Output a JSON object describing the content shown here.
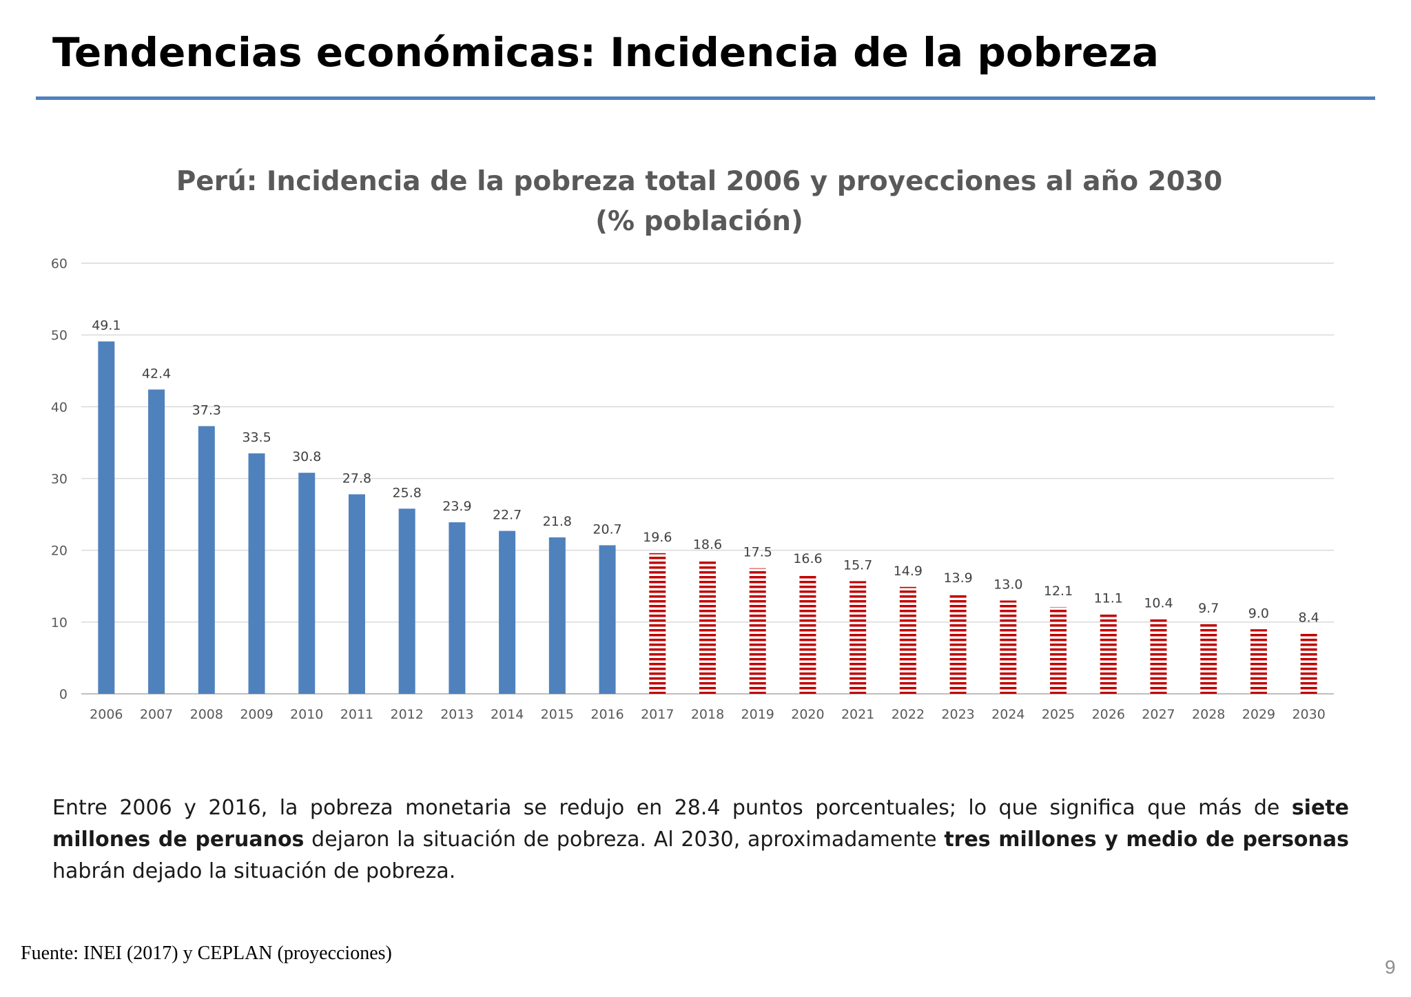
{
  "slide": {
    "title": "Tendencias económicas: Incidencia de la pobreza",
    "source": "Fuente: INEI (2017) y CEPLAN (proyecciones)",
    "page_number": "9"
  },
  "summary": {
    "p1": "Entre 2006 y 2016, la pobreza monetaria se redujo en 28.4 puntos porcentuales; lo que significa que más de ",
    "b1": "siete millones de peruanos",
    "p2": " dejaron la situación de pobreza. Al 2030, aproximadamente ",
    "b2": "tres millones y medio de personas",
    "p3": " habrán dejado la situación de pobreza."
  },
  "colors": {
    "accent_rule": "#4f81bd",
    "historical": "#4f81bd",
    "projection": "#c00000"
  },
  "chart_data": {
    "type": "bar",
    "title": "Perú: Incidencia de la pobreza total 2006 y proyecciones al año 2030",
    "subtitle": "(% población)",
    "xlabel": "",
    "ylabel": "",
    "ylim": [
      0,
      60
    ],
    "yticks": [
      0,
      10,
      20,
      30,
      40,
      50,
      60
    ],
    "grid": true,
    "categories": [
      "2006",
      "2007",
      "2008",
      "2009",
      "2010",
      "2011",
      "2012",
      "2013",
      "2014",
      "2015",
      "2016",
      "2017",
      "2018",
      "2019",
      "2020",
      "2021",
      "2022",
      "2023",
      "2024",
      "2025",
      "2026",
      "2027",
      "2028",
      "2029",
      "2030"
    ],
    "values": [
      49.1,
      42.4,
      37.3,
      33.5,
      30.8,
      27.8,
      25.8,
      23.9,
      22.7,
      21.8,
      20.7,
      19.6,
      18.6,
      17.5,
      16.6,
      15.7,
      14.9,
      13.9,
      13.0,
      12.1,
      11.1,
      10.4,
      9.7,
      9.0,
      8.4
    ],
    "labels": [
      "49.1",
      "42.4",
      "37.3",
      "33.5",
      "30.8",
      "27.8",
      "25.8",
      "23.9",
      "22.7",
      "21.8",
      "20.7",
      "19.6",
      "18.6",
      "17.5",
      "16.6",
      "15.7",
      "14.9",
      "13.9",
      "13.0",
      "12.1",
      "11.1",
      "10.4",
      "9.7",
      "9.0",
      "8.4"
    ],
    "projection_from": "2017"
  }
}
